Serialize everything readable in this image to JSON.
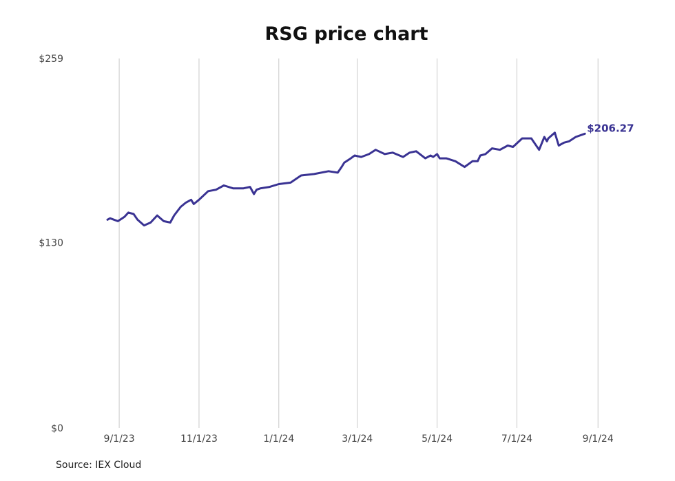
{
  "chart_data": {
    "type": "line",
    "title": "RSG price chart",
    "xlabel": "",
    "ylabel": "",
    "ylim": [
      0,
      259
    ],
    "y_ticks": [
      {
        "value": 0,
        "label": "$0"
      },
      {
        "value": 130,
        "label": "$130"
      },
      {
        "value": 259,
        "label": "$259"
      }
    ],
    "xlim": [
      "2023-08-25",
      "2024-09-01"
    ],
    "x_ticks": [
      {
        "date": "2023-09-01",
        "label": "9/1/23"
      },
      {
        "date": "2023-11-01",
        "label": "11/1/23"
      },
      {
        "date": "2024-01-01",
        "label": "1/1/24"
      },
      {
        "date": "2024-03-01",
        "label": "3/1/24"
      },
      {
        "date": "2024-05-01",
        "label": "5/1/24"
      },
      {
        "date": "2024-07-01",
        "label": "7/1/24"
      },
      {
        "date": "2024-09-01",
        "label": "9/1/24"
      }
    ],
    "grid": "vertical",
    "line_color": "#3a3393",
    "end_label": "$206.27",
    "series": [
      {
        "x": [
          "2023-08-23",
          "2023-08-25",
          "2023-08-28",
          "2023-08-31",
          "2023-09-05",
          "2023-09-08",
          "2023-09-12",
          "2023-09-15",
          "2023-09-20",
          "2023-09-25",
          "2023-09-30",
          "2023-10-05",
          "2023-10-10",
          "2023-10-13",
          "2023-10-18",
          "2023-10-22",
          "2023-10-26",
          "2023-10-28",
          "2023-11-01",
          "2023-11-08",
          "2023-11-14",
          "2023-11-20",
          "2023-11-27",
          "2023-12-05",
          "2023-12-10",
          "2023-12-13",
          "2023-12-15",
          "2023-12-18",
          "2023-12-25",
          "2024-01-01",
          "2024-01-10",
          "2024-01-18",
          "2024-01-28",
          "2024-02-08",
          "2024-02-15",
          "2024-02-18",
          "2024-02-20",
          "2024-02-25",
          "2024-02-28",
          "2024-03-04",
          "2024-03-10",
          "2024-03-15",
          "2024-03-22",
          "2024-03-28",
          "2024-04-05",
          "2024-04-10",
          "2024-04-15",
          "2024-04-22",
          "2024-04-26",
          "2024-04-28",
          "2024-05-01",
          "2024-05-03",
          "2024-05-08",
          "2024-05-15",
          "2024-05-22",
          "2024-05-28",
          "2024-06-01",
          "2024-06-03",
          "2024-06-07",
          "2024-06-12",
          "2024-06-18",
          "2024-06-24",
          "2024-06-28",
          "2024-07-05",
          "2024-07-12",
          "2024-07-18",
          "2024-07-22",
          "2024-07-24",
          "2024-07-25",
          "2024-07-30",
          "2024-08-02",
          "2024-08-06",
          "2024-08-10",
          "2024-08-15",
          "2024-08-22"
        ],
        "values": [
          146,
          147,
          146,
          145,
          148,
          151,
          150,
          146,
          142,
          144,
          149,
          145,
          144,
          149,
          155,
          158,
          160,
          157,
          160,
          166,
          167,
          170,
          168,
          168,
          169,
          164,
          167,
          168,
          169,
          171,
          172,
          177,
          178,
          180,
          179,
          183,
          186,
          189,
          191,
          190,
          192,
          195,
          192,
          193,
          190,
          193,
          194,
          189,
          191,
          190,
          192,
          189,
          189,
          187,
          183,
          187,
          187,
          191,
          192,
          196,
          195,
          198,
          197,
          203,
          203,
          195,
          204,
          201,
          203,
          207,
          198,
          200,
          201,
          204,
          206.27
        ]
      }
    ]
  },
  "source": "Source: IEX Cloud"
}
